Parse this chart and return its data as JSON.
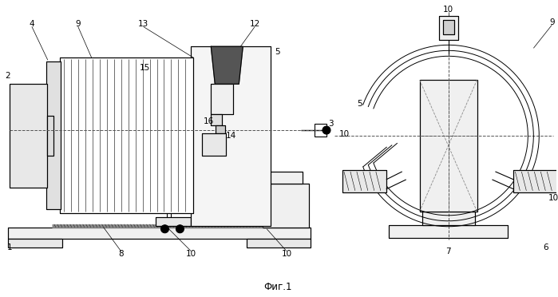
{
  "caption": "Фиг.1",
  "background_color": "#ffffff"
}
